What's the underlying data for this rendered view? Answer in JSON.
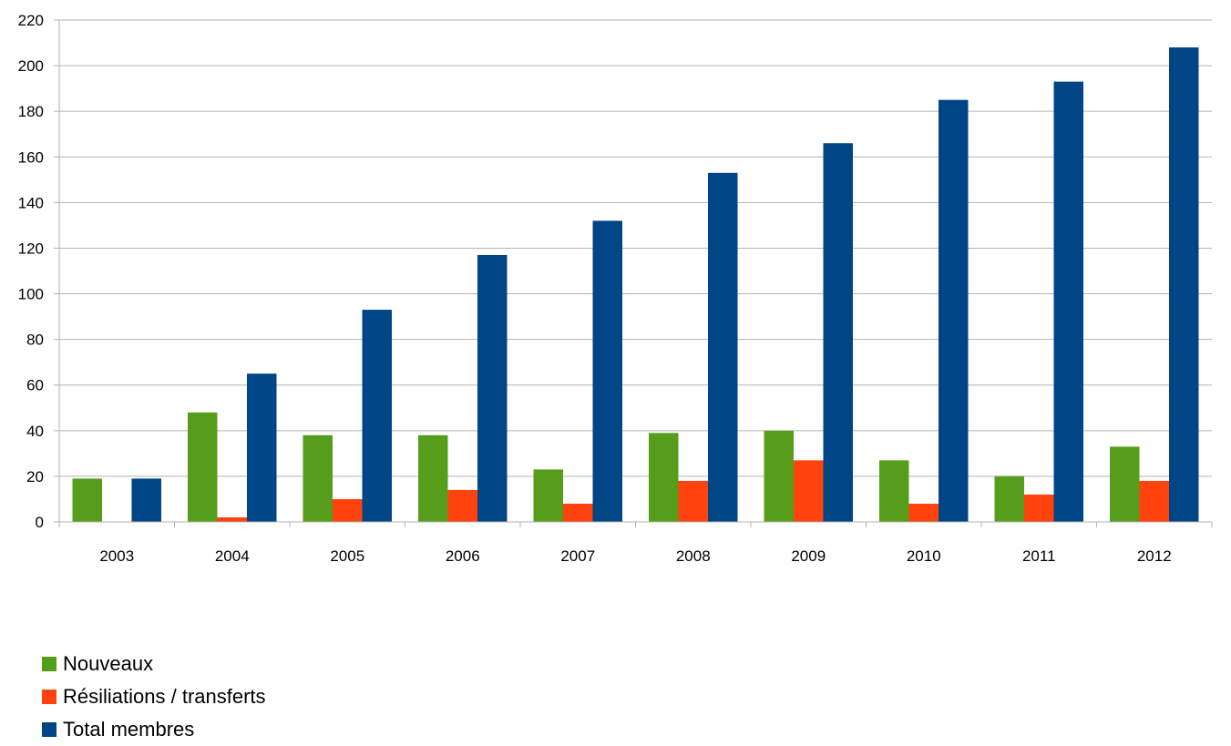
{
  "chart_data": {
    "type": "bar",
    "categories": [
      "2003",
      "2004",
      "2005",
      "2006",
      "2007",
      "2008",
      "2009",
      "2010",
      "2011",
      "2012"
    ],
    "series": [
      {
        "name": "Nouveaux",
        "color": "#579d1c",
        "values": [
          19,
          48,
          38,
          38,
          23,
          39,
          40,
          27,
          20,
          33
        ]
      },
      {
        "name": "Résiliations / transferts",
        "color": "#ff420e",
        "values": [
          0,
          2,
          10,
          14,
          8,
          18,
          27,
          8,
          12,
          18
        ]
      },
      {
        "name": "Total membres",
        "color": "#004586",
        "values": [
          19,
          65,
          93,
          117,
          132,
          153,
          166,
          185,
          193,
          208
        ]
      }
    ],
    "ylim": [
      0,
      220
    ],
    "yticks": [
      0,
      20,
      40,
      60,
      80,
      100,
      120,
      140,
      160,
      180,
      200,
      220
    ],
    "grid": true,
    "legend_position": "bottom-left"
  }
}
